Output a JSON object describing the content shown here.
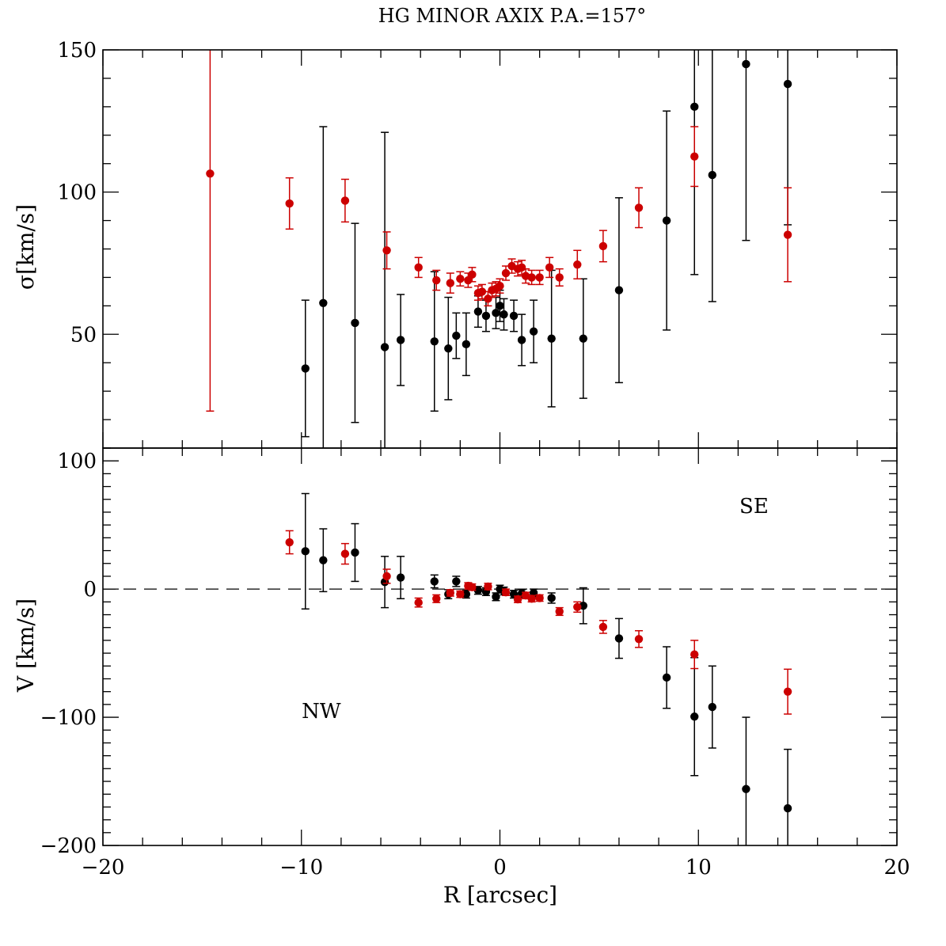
{
  "chart_data": {
    "title": "HG MINOR AXIX P.A.=157°",
    "type": "scatter",
    "xlabel": "R [arcsec]",
    "xlim": [
      -20,
      20
    ],
    "xticks": [
      -20,
      -10,
      0,
      10,
      20
    ],
    "xtick_labels": [
      "−20",
      "−10",
      "0",
      "10",
      "20"
    ],
    "colors": {
      "black_series": "#000000",
      "red_series": "#cc0000"
    },
    "panels": [
      {
        "id": "sigma",
        "ylabel": "σ[km/s]",
        "ylim": [
          10,
          150
        ],
        "yticks": [
          50,
          100,
          150
        ],
        "ytick_labels": [
          "50",
          "100",
          "150"
        ],
        "series": [
          {
            "color": "black",
            "points": [
              {
                "x": -9.8,
                "y": 38,
                "err": 24
              },
              {
                "x": -8.9,
                "y": 61,
                "err": 62
              },
              {
                "x": -7.3,
                "y": 54,
                "err": 35
              },
              {
                "x": -5.8,
                "y": 45.5,
                "err": 75.5
              },
              {
                "x": -5.0,
                "y": 48,
                "err": 16
              },
              {
                "x": -3.3,
                "y": 47.5,
                "err": 24.5
              },
              {
                "x": -2.6,
                "y": 45,
                "err": 18
              },
              {
                "x": -2.2,
                "y": 49.5,
                "err": 8
              },
              {
                "x": -1.7,
                "y": 46.5,
                "err": 11
              },
              {
                "x": -1.1,
                "y": 58,
                "err": 5.5
              },
              {
                "x": -0.7,
                "y": 56.5,
                "err": 5.5
              },
              {
                "x": -0.2,
                "y": 57.5,
                "err": 5.5
              },
              {
                "x": 0.0,
                "y": 60,
                "err": 5.5
              },
              {
                "x": 0.2,
                "y": 57,
                "err": 5.5
              },
              {
                "x": 0.7,
                "y": 56.5,
                "err": 5.5
              },
              {
                "x": 1.1,
                "y": 48,
                "err": 9
              },
              {
                "x": 1.7,
                "y": 51,
                "err": 11
              },
              {
                "x": 2.6,
                "y": 48.5,
                "err": 24
              },
              {
                "x": 4.2,
                "y": 48.5,
                "err": 21
              },
              {
                "x": 6.0,
                "y": 65.5,
                "err": 32.5
              },
              {
                "x": 8.4,
                "y": 90,
                "err": 38.5
              },
              {
                "x": 9.8,
                "y": 130,
                "err": 59
              },
              {
                "x": 10.7,
                "y": 106,
                "err": 44.5
              },
              {
                "x": 12.4,
                "y": 145,
                "err": 62
              },
              {
                "x": 14.5,
                "y": 138,
                "err": 49.5
              }
            ]
          },
          {
            "color": "red",
            "points": [
              {
                "x": -14.6,
                "y": 106.5,
                "err": 83.5
              },
              {
                "x": -10.6,
                "y": 96,
                "err": 9
              },
              {
                "x": -7.8,
                "y": 97,
                "err": 7.5
              },
              {
                "x": -5.7,
                "y": 79.5,
                "err": 6.5
              },
              {
                "x": -4.1,
                "y": 73.5,
                "err": 3.5
              },
              {
                "x": -3.2,
                "y": 69,
                "err": 3.5
              },
              {
                "x": -2.5,
                "y": 68,
                "err": 3.5
              },
              {
                "x": -2.0,
                "y": 69.5,
                "err": 2.5
              },
              {
                "x": -1.6,
                "y": 69,
                "err": 2.5
              },
              {
                "x": -1.4,
                "y": 71,
                "err": 2.5
              },
              {
                "x": -1.1,
                "y": 64.5,
                "err": 2.5
              },
              {
                "x": -0.9,
                "y": 65,
                "err": 2.5
              },
              {
                "x": -0.6,
                "y": 62.5,
                "err": 2.5
              },
              {
                "x": -0.4,
                "y": 65.5,
                "err": 2.5
              },
              {
                "x": -0.2,
                "y": 66,
                "err": 2.5
              },
              {
                "x": 0.0,
                "y": 67,
                "err": 2.5
              },
              {
                "x": 0.3,
                "y": 71.5,
                "err": 2.5
              },
              {
                "x": 0.6,
                "y": 74,
                "err": 2.5
              },
              {
                "x": 0.9,
                "y": 73,
                "err": 2.5
              },
              {
                "x": 1.1,
                "y": 73.5,
                "err": 2.5
              },
              {
                "x": 1.3,
                "y": 70.5,
                "err": 2.5
              },
              {
                "x": 1.6,
                "y": 70,
                "err": 2.5
              },
              {
                "x": 2.0,
                "y": 70,
                "err": 2.5
              },
              {
                "x": 2.5,
                "y": 73.5,
                "err": 3.5
              },
              {
                "x": 3.0,
                "y": 70,
                "err": 3
              },
              {
                "x": 3.9,
                "y": 74.5,
                "err": 5
              },
              {
                "x": 5.2,
                "y": 81,
                "err": 5.5
              },
              {
                "x": 7.0,
                "y": 94.5,
                "err": 7
              },
              {
                "x": 9.8,
                "y": 112.5,
                "err": 10.5
              },
              {
                "x": 14.5,
                "y": 85,
                "err": 16.5
              }
            ]
          }
        ]
      },
      {
        "id": "velocity",
        "ylabel": "V [km/s]",
        "ylim": [
          -200,
          110
        ],
        "yticks": [
          -200,
          -100,
          0,
          100
        ],
        "ytick_labels": [
          "−200",
          "−100",
          "0",
          "100"
        ],
        "zero_line": true,
        "annotations": [
          {
            "text": "SE",
            "x": 12.8,
            "y": 65
          },
          {
            "text": "NW",
            "x": -9.0,
            "y": -95
          }
        ],
        "series": [
          {
            "color": "black",
            "points": [
              {
                "x": -9.8,
                "y": 29.5,
                "err": 45
              },
              {
                "x": -8.9,
                "y": 22.5,
                "err": 24.5
              },
              {
                "x": -7.3,
                "y": 28.5,
                "err": 22.5
              },
              {
                "x": -5.8,
                "y": 5.5,
                "err": 20
              },
              {
                "x": -5.0,
                "y": 9,
                "err": 16.5
              },
              {
                "x": -3.3,
                "y": 6,
                "err": 5
              },
              {
                "x": -2.6,
                "y": -4,
                "err": 3.5
              },
              {
                "x": -2.2,
                "y": 6,
                "err": 4
              },
              {
                "x": -1.7,
                "y": -4,
                "err": 3
              },
              {
                "x": -1.1,
                "y": -1,
                "err": 3
              },
              {
                "x": -0.7,
                "y": -2,
                "err": 3
              },
              {
                "x": -0.2,
                "y": -6,
                "err": 3
              },
              {
                "x": 0.0,
                "y": 0,
                "err": 3
              },
              {
                "x": 0.2,
                "y": -1.5,
                "err": 3
              },
              {
                "x": 0.7,
                "y": -4,
                "err": 3
              },
              {
                "x": 1.1,
                "y": -3.5,
                "err": 3
              },
              {
                "x": 1.7,
                "y": -3,
                "err": 3
              },
              {
                "x": 2.6,
                "y": -7,
                "err": 4
              },
              {
                "x": 4.2,
                "y": -13,
                "err": 14
              },
              {
                "x": 6.0,
                "y": -38.5,
                "err": 15.5
              },
              {
                "x": 8.4,
                "y": -69,
                "err": 24
              },
              {
                "x": 9.8,
                "y": -99.5,
                "err": 46
              },
              {
                "x": 10.7,
                "y": -92,
                "err": 32
              },
              {
                "x": 12.4,
                "y": -156,
                "err": 56
              },
              {
                "x": 14.5,
                "y": -171,
                "err": 46
              }
            ]
          },
          {
            "color": "red",
            "points": [
              {
                "x": -10.6,
                "y": 36.5,
                "err": 9
              },
              {
                "x": -7.8,
                "y": 27.5,
                "err": 8
              },
              {
                "x": -5.7,
                "y": 10,
                "err": 5.5
              },
              {
                "x": -4.1,
                "y": -10.5,
                "err": 3.5
              },
              {
                "x": -3.2,
                "y": -7.5,
                "err": 3
              },
              {
                "x": -2.5,
                "y": -3,
                "err": 2.5
              },
              {
                "x": -2.0,
                "y": -4,
                "err": 2.5
              },
              {
                "x": -1.6,
                "y": 2.5,
                "err": 2.5
              },
              {
                "x": -1.4,
                "y": 1.5,
                "err": 2.5
              },
              {
                "x": -0.6,
                "y": 2,
                "err": 2.5
              },
              {
                "x": 0.3,
                "y": -2.5,
                "err": 2.5
              },
              {
                "x": 0.9,
                "y": -8,
                "err": 2.5
              },
              {
                "x": 1.3,
                "y": -5,
                "err": 2.5
              },
              {
                "x": 1.6,
                "y": -7.5,
                "err": 2.5
              },
              {
                "x": 2.0,
                "y": -7,
                "err": 2.5
              },
              {
                "x": 3.0,
                "y": -17.5,
                "err": 3
              },
              {
                "x": 3.9,
                "y": -14,
                "err": 4
              },
              {
                "x": 5.2,
                "y": -29.5,
                "err": 5
              },
              {
                "x": 7.0,
                "y": -39,
                "err": 6.5
              },
              {
                "x": 9.8,
                "y": -51,
                "err": 11
              },
              {
                "x": 14.5,
                "y": -80,
                "err": 17.5
              }
            ]
          }
        ]
      }
    ]
  }
}
